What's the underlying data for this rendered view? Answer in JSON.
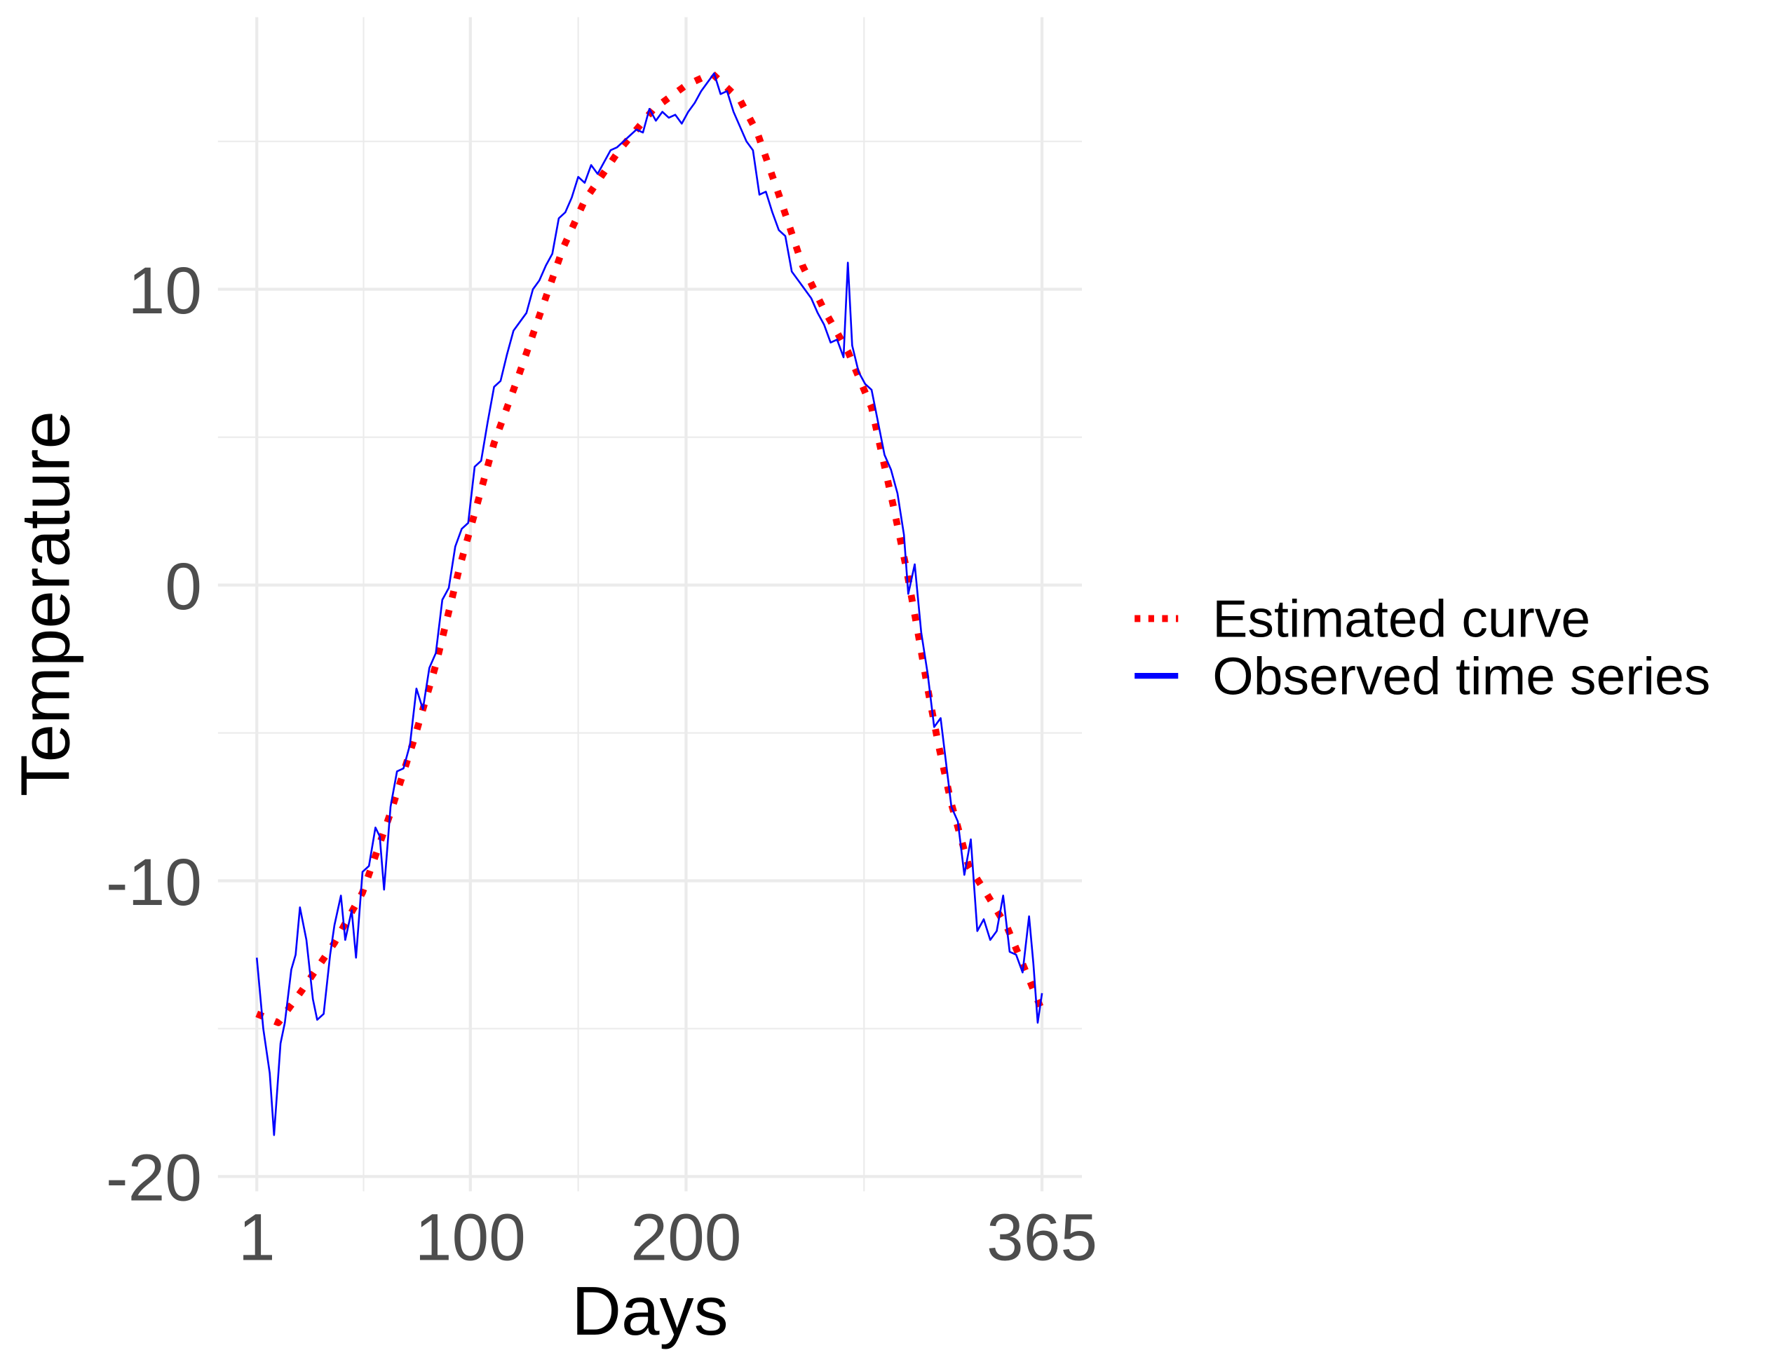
{
  "chart_data": {
    "type": "line",
    "x_label": "Days",
    "y_label": "Temperature",
    "xlim": [
      -17,
      383.5
    ],
    "ylim": [
      -20.5,
      19.2
    ],
    "xticks": [
      1,
      100,
      200,
      365
    ],
    "yticks": [
      -20,
      -10,
      0,
      10
    ],
    "x_minor_ticks": [
      50.5,
      150,
      282.5
    ],
    "y_minor_ticks": [
      -15,
      -5,
      5,
      15
    ],
    "grid": true,
    "legend": "right",
    "series": [
      {
        "name": "Estimated curve",
        "color": "#ff0000",
        "style": "dotted",
        "x": [
          1,
          11,
          22,
          37,
          50,
          63,
          74,
          84,
          95,
          100,
          111,
          122,
          132,
          143,
          153,
          169,
          185,
          200,
          212,
          225,
          233,
          243,
          254,
          264,
          275,
          286,
          296,
          302,
          307,
          312,
          317,
          323,
          331,
          339,
          349,
          360,
          365
        ],
        "values": [
          -14.5,
          -14.8,
          -13.7,
          -12.1,
          -10.4,
          -7.7,
          -5.2,
          -2.7,
          0.6,
          1.9,
          4.8,
          7.0,
          9.1,
          11.4,
          13.0,
          14.7,
          16.1,
          16.9,
          17.3,
          16.4,
          15.3,
          13.2,
          10.8,
          9.3,
          7.9,
          6.0,
          2.7,
          0.6,
          -1.4,
          -3.5,
          -5.4,
          -7.4,
          -9.5,
          -10.4,
          -11.6,
          -13.5,
          -14.4
        ]
      },
      {
        "name": "Observed time series",
        "color": "#0000ff",
        "style": "solid",
        "x": [
          1,
          4,
          7,
          9,
          12,
          14,
          17,
          19,
          21,
          24,
          27,
          29,
          32,
          35,
          37,
          40,
          42,
          45,
          47,
          50,
          53,
          56,
          58,
          60,
          63,
          66,
          69,
          72,
          75,
          78,
          81,
          84,
          87,
          90,
          93,
          96,
          99,
          102,
          105,
          108,
          111,
          114,
          117,
          120,
          123,
          126,
          129,
          132,
          135,
          138,
          141,
          144,
          147,
          150,
          153,
          156,
          159,
          162,
          165,
          168,
          171,
          174,
          177,
          180,
          183,
          186,
          189,
          192,
          195,
          198,
          201,
          204,
          207,
          210,
          213,
          216,
          219,
          222,
          225,
          228,
          231,
          234,
          237,
          240,
          243,
          246,
          249,
          252,
          255,
          258,
          261,
          264,
          267,
          270,
          273,
          275,
          277,
          280,
          283,
          286,
          289,
          292,
          295,
          298,
          301,
          303,
          306,
          309,
          312,
          315,
          318,
          321,
          323,
          326,
          329,
          332,
          335,
          338,
          341,
          344,
          347,
          350,
          353,
          356,
          359,
          361,
          363,
          365
        ],
        "values": [
          -12.6,
          -15,
          -16.5,
          -18.6,
          -15.5,
          -14.8,
          -13,
          -12.5,
          -10.9,
          -12,
          -14,
          -14.7,
          -14.5,
          -12.5,
          -11.5,
          -10.5,
          -12,
          -11,
          -12.6,
          -9.7,
          -9.5,
          -8.2,
          -8.5,
          -10.3,
          -7.5,
          -6.3,
          -6.2,
          -5.4,
          -3.5,
          -4.2,
          -2.8,
          -2.3,
          -0.5,
          -0.1,
          1.3,
          1.9,
          2.1,
          4,
          4.2,
          5.5,
          6.7,
          6.9,
          7.8,
          8.6,
          8.9,
          9.2,
          10,
          10.3,
          10.8,
          11.2,
          12.4,
          12.6,
          13.1,
          13.8,
          13.6,
          14.2,
          13.9,
          14.3,
          14.7,
          14.8,
          15.0,
          15.2,
          15.4,
          15.3,
          16.1,
          15.7,
          16.0,
          15.8,
          15.9,
          15.6,
          16.0,
          16.3,
          16.7,
          17.0,
          17.3,
          16.6,
          16.7,
          16.0,
          15.5,
          15.0,
          14.7,
          13.2,
          13.3,
          12.6,
          12.0,
          11.8,
          10.6,
          10.3,
          10.0,
          9.7,
          9.2,
          8.8,
          8.2,
          8.3,
          7.7,
          10.9,
          8.1,
          7.2,
          6.8,
          6.6,
          5.5,
          4.4,
          3.9,
          3.1,
          1.7,
          -0.3,
          0.7,
          -1.6,
          -3.0,
          -4.8,
          -4.5,
          -6.3,
          -7.5,
          -8.0,
          -9.8,
          -8.6,
          -11.7,
          -11.3,
          -12.0,
          -11.7,
          -10.5,
          -12.4,
          -12.5,
          -13.1,
          -11.2,
          -12.8,
          -14.8,
          -13.8
        ]
      }
    ]
  }
}
